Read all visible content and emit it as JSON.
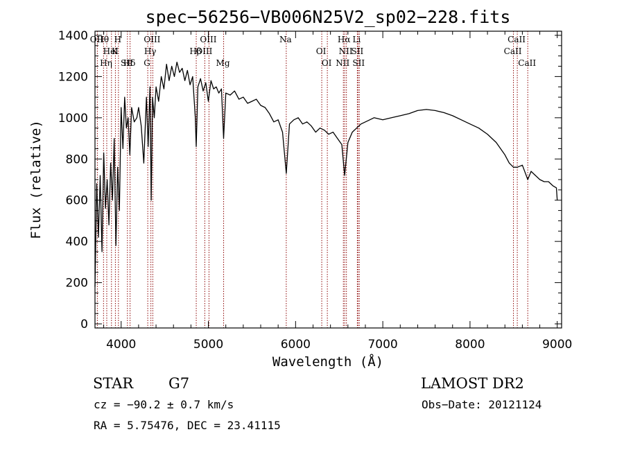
{
  "chart_data": {
    "type": "line",
    "title": "spec−56256−VB006N25V2_sp02−228.fits",
    "xlabel": "Wavelength (Å)",
    "ylabel": "Flux (relative)",
    "xlim": [
      3700,
      9050
    ],
    "ylim": [
      -20,
      1420
    ],
    "x_ticks": [
      4000,
      5000,
      6000,
      7000,
      8000,
      9000
    ],
    "y_ticks": [
      0,
      200,
      400,
      600,
      800,
      1000,
      1200,
      1400
    ],
    "grid": false,
    "series": [
      {
        "x": [
          3700,
          3720,
          3740,
          3760,
          3780,
          3800,
          3820,
          3840,
          3860,
          3880,
          3900,
          3920,
          3940,
          3960,
          3980,
          4000,
          4020,
          4040,
          4060,
          4080,
          4100,
          4120,
          4150,
          4180,
          4200,
          4230,
          4260,
          4290,
          4310,
          4330,
          4345,
          4360,
          4380,
          4400,
          4430,
          4460,
          4490,
          4520,
          4550,
          4580,
          4610,
          4640,
          4670,
          4700,
          4730,
          4760,
          4790,
          4820,
          4850,
          4861,
          4880,
          4910,
          4940,
          4970,
          5000,
          5030,
          5060,
          5090,
          5120,
          5150,
          5175,
          5200,
          5250,
          5300,
          5350,
          5400,
          5450,
          5500,
          5550,
          5600,
          5650,
          5700,
          5750,
          5800,
          5850,
          5893,
          5930,
          5980,
          6030,
          6080,
          6130,
          6180,
          6230,
          6280,
          6330,
          6380,
          6430,
          6480,
          6530,
          6563,
          6600,
          6650,
          6700,
          6750,
          6800,
          6850,
          6900,
          6950,
          7000,
          7100,
          7200,
          7300,
          7400,
          7500,
          7600,
          7700,
          7800,
          7900,
          8000,
          8100,
          8200,
          8300,
          8400,
          8450,
          8498,
          8542,
          8600,
          8662,
          8700,
          8750,
          8800,
          8850,
          8900,
          8950,
          8990,
          9000
        ],
        "values": [
          180,
          680,
          420,
          720,
          350,
          830,
          560,
          700,
          480,
          780,
          600,
          900,
          380,
          760,
          550,
          1050,
          850,
          1100,
          950,
          1000,
          820,
          1050,
          980,
          1000,
          1050,
          960,
          780,
          1100,
          860,
          1150,
          600,
          1100,
          1000,
          1150,
          1080,
          1200,
          1140,
          1260,
          1180,
          1250,
          1200,
          1270,
          1220,
          1240,
          1180,
          1230,
          1160,
          1200,
          1000,
          860,
          1150,
          1190,
          1130,
          1170,
          1080,
          1180,
          1140,
          1150,
          1120,
          1140,
          900,
          1120,
          1110,
          1130,
          1090,
          1100,
          1070,
          1080,
          1090,
          1060,
          1050,
          1020,
          980,
          990,
          930,
          730,
          970,
          990,
          1000,
          970,
          980,
          960,
          930,
          950,
          940,
          920,
          930,
          900,
          870,
          720,
          880,
          930,
          950,
          970,
          980,
          990,
          1000,
          995,
          990,
          1000,
          1010,
          1020,
          1035,
          1040,
          1035,
          1025,
          1010,
          990,
          970,
          950,
          920,
          880,
          820,
          780,
          760,
          760,
          770,
          700,
          740,
          720,
          700,
          690,
          690,
          670,
          660,
          600
        ]
      }
    ],
    "line_labels": [
      {
        "label": "Hθ",
        "x": 3798
      },
      {
        "label": "K",
        "x": 3934
      },
      {
        "label": "Hδ",
        "x": 4102
      },
      {
        "label": "OII",
        "x": 3727
      },
      {
        "label": "HeI",
        "x": 3889
      },
      {
        "label": "SII",
        "x": 4072
      },
      {
        "label": "OIII",
        "x": 4363
      },
      {
        "label": "OIII",
        "x": 4959
      },
      {
        "label": "Hη",
        "x": 3835
      },
      {
        "label": "H",
        "x": 3969
      },
      {
        "label": "Hγ",
        "x": 4341
      },
      {
        "label": "G",
        "x": 4305
      },
      {
        "label": "OIII",
        "x": 5007
      },
      {
        "label": "Hβ",
        "x": 4861
      },
      {
        "label": "Mg",
        "x": 5175
      },
      {
        "label": "Na",
        "x": 5893
      },
      {
        "label": "OI",
        "x": 6300
      },
      {
        "label": "OI",
        "x": 6364
      },
      {
        "label": "Hα",
        "x": 6563
      },
      {
        "label": "SII",
        "x": 6716
      },
      {
        "label": "NII",
        "x": 6548
      },
      {
        "label": "Li",
        "x": 6708
      },
      {
        "label": "NII",
        "x": 6583
      },
      {
        "label": "SII",
        "x": 6731
      },
      {
        "label": "CaII",
        "x": 8542
      },
      {
        "label": "CaII",
        "x": 8498
      },
      {
        "label": "CaII",
        "x": 8662
      }
    ]
  },
  "info": {
    "object_type": "STAR",
    "subclass": "G7",
    "survey": "LAMOST DR2",
    "cz": "cz = −90.2 ± 0.7 km/s",
    "obs_date": "Obs−Date: 20121124",
    "radec": "RA =   5.75476, DEC =  23.41115"
  },
  "colors": {
    "spectrum": "#000000",
    "line_markers": "#8b0000",
    "background": "#ffffff"
  }
}
